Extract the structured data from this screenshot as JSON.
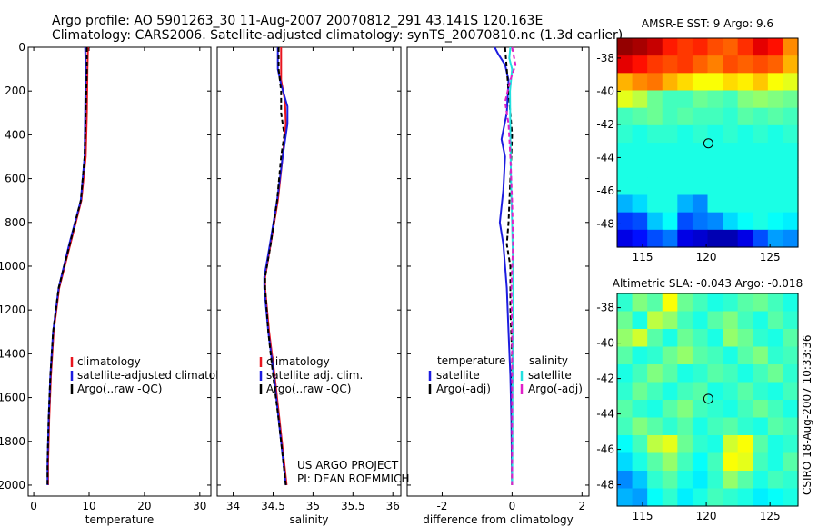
{
  "header": {
    "line1": "Argo profile: AO 5901263_30 11-Aug-2007 20070812_291 43.141S 120.163E",
    "line2": "Climatology: CARS2006. Satellite-adjusted climatology: synTS_20070810.nc (1.3d earlier)"
  },
  "credits": {
    "project": "US ARGO PROJECT",
    "pi": "PI: DEAN ROEMMICH",
    "stamp": "CSIRO 18-Aug-2007 10:33:36"
  },
  "colors": {
    "climatology": "#e8141e",
    "satellite": "#1c1ce0",
    "argo": "#000000",
    "salinity_satellite": "#22e0e0",
    "salinity_argo": "#e020c8"
  },
  "chart_data": [
    {
      "id": "temperature",
      "type": "line",
      "xlabel": "temperature",
      "xlim": [
        -1,
        32
      ],
      "ylim": [
        2050,
        0
      ],
      "xticks": [
        0,
        10,
        20,
        30
      ],
      "xtick_labels": [
        "0",
        "10",
        "20",
        "30"
      ],
      "yticks": [
        0,
        200,
        400,
        600,
        800,
        1000,
        1200,
        1400,
        1600,
        1800,
        2000
      ],
      "ytick_labels": [
        "0",
        "200",
        "400",
        "600",
        "800",
        "1000",
        "1200",
        "1400",
        "1600",
        "1800",
        "2000"
      ],
      "legend": [
        "climatology",
        "satellite-adjusted climatology",
        "Argo(..raw -QC)"
      ],
      "series": [
        {
          "name": "climatology",
          "color": "climatology",
          "dash": "",
          "depth": [
            0,
            100,
            300,
            500,
            700,
            900,
            1100,
            1300,
            1500,
            1700,
            1900,
            2000
          ],
          "values": [
            9.8,
            9.7,
            9.6,
            9.4,
            8.6,
            6.6,
            4.6,
            3.6,
            3.1,
            2.8,
            2.6,
            2.6
          ]
        },
        {
          "name": "satellite",
          "color": "satellite",
          "dash": "",
          "depth": [
            0,
            100,
            300,
            500,
            700,
            900,
            1100,
            1300,
            1500,
            1700,
            1900,
            2000
          ],
          "values": [
            9.3,
            9.4,
            9.3,
            9.2,
            8.5,
            6.4,
            4.5,
            3.5,
            3.0,
            2.7,
            2.5,
            2.5
          ]
        },
        {
          "name": "argo",
          "color": "argo",
          "dash": "5,3",
          "depth": [
            0,
            100,
            300,
            500,
            700,
            900,
            1100,
            1300,
            1500,
            1700,
            1900,
            2000
          ],
          "values": [
            9.6,
            9.6,
            9.4,
            9.2,
            8.5,
            6.5,
            4.5,
            3.5,
            3.0,
            2.7,
            2.5,
            2.5
          ]
        }
      ]
    },
    {
      "id": "salinity",
      "type": "line",
      "xlabel": "salinity",
      "xlim": [
        33.8,
        36.1
      ],
      "ylim": [
        2050,
        0
      ],
      "xticks": [
        34,
        34.5,
        35,
        35.5,
        36
      ],
      "xtick_labels": [
        "34",
        "34.5",
        "35",
        "35.5",
        "36"
      ],
      "legend": [
        "climatology",
        "satellite adj. clim.",
        "Argo(..raw -QC)"
      ],
      "series": [
        {
          "name": "climatology",
          "color": "climatology",
          "dash": "",
          "depth": [
            0,
            100,
            150,
            250,
            350,
            500,
            700,
            900,
            1050,
            1100,
            1300,
            1500,
            1700,
            1900,
            2000
          ],
          "values": [
            34.6,
            34.6,
            34.6,
            34.65,
            34.66,
            34.62,
            34.56,
            34.47,
            34.4,
            34.4,
            34.45,
            34.52,
            34.58,
            34.64,
            34.67
          ]
        },
        {
          "name": "satellite",
          "color": "satellite",
          "dash": "",
          "depth": [
            0,
            100,
            170,
            270,
            350,
            500,
            700,
            900,
            1050,
            1100,
            1300,
            1500,
            1700,
            1900,
            2000
          ],
          "values": [
            34.56,
            34.56,
            34.6,
            34.68,
            34.68,
            34.62,
            34.55,
            34.46,
            34.39,
            34.39,
            34.44,
            34.51,
            34.57,
            34.63,
            34.66
          ]
        },
        {
          "name": "argo",
          "color": "argo",
          "dash": "5,3",
          "depth": [
            0,
            100,
            200,
            300,
            400,
            500,
            700,
            900,
            1050,
            1100,
            1300,
            1500,
            1700,
            1900,
            2000
          ],
          "values": [
            34.57,
            34.57,
            34.6,
            34.6,
            34.64,
            34.6,
            34.55,
            34.47,
            34.4,
            34.4,
            34.44,
            34.5,
            34.57,
            34.63,
            34.66
          ]
        }
      ]
    },
    {
      "id": "difference",
      "type": "line",
      "xlabel": "difference from climatology",
      "xlim": [
        -3,
        2.2
      ],
      "ylim": [
        2050,
        0
      ],
      "xticks": [
        -2,
        0,
        2
      ],
      "xtick_labels": [
        "-2",
        "0",
        "2"
      ],
      "legend_groups": [
        {
          "title": "temperature",
          "items": [
            "satellite",
            "Argo(-adj)"
          ]
        },
        {
          "title": "salinity",
          "items": [
            "satellite",
            "Argo(-adj)"
          ]
        }
      ],
      "series": [
        {
          "name": "temperature satellite",
          "color": "satellite",
          "dash": "",
          "depth": [
            0,
            30,
            80,
            150,
            300,
            420,
            500,
            650,
            800,
            900,
            1100,
            1300,
            1500,
            1700,
            2000
          ],
          "values": [
            -0.5,
            -0.4,
            -0.2,
            -0.1,
            -0.15,
            -0.3,
            -0.2,
            -0.25,
            -0.35,
            -0.25,
            -0.15,
            -0.1,
            -0.05,
            -0.02,
            0
          ]
        },
        {
          "name": "temperature Argo(-adj)",
          "color": "argo",
          "dash": "5,3",
          "depth": [
            0,
            100,
            200,
            400,
            600,
            800,
            900,
            1000,
            1200,
            1400,
            1600,
            1800,
            2000
          ],
          "values": [
            -0.2,
            -0.15,
            -0.1,
            0,
            -0.05,
            -0.1,
            -0.15,
            -0.05,
            -0.05,
            0,
            0,
            0,
            0
          ]
        },
        {
          "name": "salinity satellite",
          "color": "salinity_satellite",
          "dash": "",
          "depth": [
            0,
            50,
            100,
            200,
            400,
            600,
            800,
            1000,
            1200,
            1400,
            1600,
            1800,
            2000
          ],
          "values": [
            -0.05,
            -0.08,
            0,
            -0.06,
            -0.05,
            -0.03,
            0,
            0.03,
            0.04,
            0.02,
            0.01,
            0.01,
            0
          ]
        },
        {
          "name": "salinity Argo(-adj)",
          "color": "salinity_argo",
          "dash": "5,3",
          "depth": [
            0,
            80,
            150,
            250,
            350,
            500,
            700,
            900,
            1100,
            1300,
            1500,
            1700,
            2000
          ],
          "values": [
            0,
            0.1,
            -0.05,
            -0.2,
            -0.1,
            -0.05,
            0,
            0.03,
            -0.02,
            0,
            0,
            0,
            0
          ]
        }
      ]
    },
    {
      "id": "sst_map",
      "type": "heatmap",
      "title": "AMSR-E SST: 9 Argo: 9.6",
      "xlim": [
        113,
        127.2
      ],
      "ylim": [
        -49.4,
        -36.8
      ],
      "xticks": [
        115,
        120,
        125
      ],
      "xtick_labels": [
        "115",
        "120",
        "125"
      ],
      "yticks": [
        -38,
        -40,
        -42,
        -44,
        -46,
        -48
      ],
      "ytick_labels": [
        "-38",
        "-40",
        "-42",
        "-44",
        "-46",
        "-48"
      ],
      "marker": {
        "lon": 120.163,
        "lat": -43.141
      },
      "lat_bands": [
        -37.8,
        -38.8,
        -39.6,
        -40.4,
        -41.2,
        -42.2,
        -43.2,
        -44.4,
        -45.6,
        -46.6,
        -47.6,
        -48.6
      ],
      "grid": [
        [
          0.98,
          0.96,
          0.93,
          0.85,
          0.82,
          0.84,
          0.8,
          0.78,
          0.83,
          0.9,
          0.86,
          0.74
        ],
        [
          0.9,
          0.86,
          0.82,
          0.8,
          0.82,
          0.78,
          0.75,
          0.8,
          0.78,
          0.8,
          0.78,
          0.7
        ],
        [
          0.7,
          0.74,
          0.76,
          0.7,
          0.66,
          0.62,
          0.62,
          0.66,
          0.64,
          0.68,
          0.62,
          0.6
        ],
        [
          0.6,
          0.56,
          0.48,
          0.44,
          0.44,
          0.48,
          0.46,
          0.44,
          0.5,
          0.52,
          0.5,
          0.48
        ],
        [
          0.44,
          0.46,
          0.48,
          0.44,
          0.46,
          0.44,
          0.44,
          0.42,
          0.46,
          0.44,
          0.46,
          0.44
        ],
        [
          0.42,
          0.4,
          0.42,
          0.42,
          0.4,
          0.42,
          0.4,
          0.42,
          0.4,
          0.42,
          0.4,
          0.42
        ],
        [
          0.4,
          0.4,
          0.4,
          0.4,
          0.4,
          0.4,
          0.4,
          0.4,
          0.4,
          0.4,
          0.4,
          0.4
        ],
        [
          0.4,
          0.4,
          0.4,
          0.4,
          0.4,
          0.4,
          0.4,
          0.4,
          0.4,
          0.4,
          0.4,
          0.4
        ],
        [
          0.4,
          0.4,
          0.4,
          0.4,
          0.4,
          0.4,
          0.4,
          0.4,
          0.4,
          0.4,
          0.4,
          0.4
        ],
        [
          0.3,
          0.34,
          0.4,
          0.4,
          0.3,
          0.26,
          0.4,
          0.4,
          0.4,
          0.4,
          0.4,
          0.4
        ],
        [
          0.18,
          0.2,
          0.32,
          0.38,
          0.2,
          0.24,
          0.26,
          0.34,
          0.38,
          0.4,
          0.38,
          0.36
        ],
        [
          0.1,
          0.14,
          0.2,
          0.24,
          0.1,
          0.08,
          0.05,
          0.05,
          0.1,
          0.2,
          0.28,
          0.26
        ]
      ]
    },
    {
      "id": "sla_map",
      "type": "heatmap",
      "title": "Altimetric SLA: -0.043 Argo: -0.018",
      "xlim": [
        113,
        127.2
      ],
      "ylim": [
        -49.2,
        -37.2
      ],
      "xticks": [
        115,
        120,
        125
      ],
      "xtick_labels": [
        "115",
        "120",
        "125"
      ],
      "yticks": [
        -38,
        -40,
        -42,
        -44,
        -46,
        -48
      ],
      "ytick_labels": [
        "-38",
        "-40",
        "-42",
        "-44",
        "-46",
        "-48"
      ],
      "marker": {
        "lon": 120.163,
        "lat": -43.141
      },
      "grid": [
        [
          0.42,
          0.5,
          0.46,
          0.62,
          0.48,
          0.44,
          0.4,
          0.42,
          0.46,
          0.48,
          0.44,
          0.4
        ],
        [
          0.48,
          0.4,
          0.56,
          0.52,
          0.44,
          0.4,
          0.46,
          0.5,
          0.44,
          0.4,
          0.46,
          0.42
        ],
        [
          0.52,
          0.58,
          0.46,
          0.4,
          0.48,
          0.44,
          0.4,
          0.52,
          0.48,
          0.42,
          0.4,
          0.46
        ],
        [
          0.46,
          0.4,
          0.42,
          0.48,
          0.52,
          0.46,
          0.44,
          0.4,
          0.46,
          0.5,
          0.42,
          0.44
        ],
        [
          0.4,
          0.44,
          0.5,
          0.46,
          0.4,
          0.42,
          0.46,
          0.44,
          0.4,
          0.44,
          0.48,
          0.42
        ],
        [
          0.42,
          0.48,
          0.44,
          0.4,
          0.44,
          0.46,
          0.4,
          0.42,
          0.46,
          0.42,
          0.4,
          0.44
        ],
        [
          0.46,
          0.42,
          0.4,
          0.46,
          0.5,
          0.44,
          0.42,
          0.4,
          0.44,
          0.48,
          0.44,
          0.4
        ],
        [
          0.44,
          0.5,
          0.46,
          0.42,
          0.46,
          0.4,
          0.44,
          0.46,
          0.42,
          0.4,
          0.46,
          0.44
        ],
        [
          0.38,
          0.44,
          0.56,
          0.6,
          0.48,
          0.42,
          0.4,
          0.58,
          0.62,
          0.46,
          0.4,
          0.42
        ],
        [
          0.34,
          0.4,
          0.46,
          0.52,
          0.44,
          0.38,
          0.44,
          0.62,
          0.6,
          0.44,
          0.4,
          0.46
        ],
        [
          0.26,
          0.32,
          0.42,
          0.46,
          0.4,
          0.36,
          0.42,
          0.52,
          0.46,
          0.4,
          0.44,
          0.42
        ],
        [
          0.3,
          0.28,
          0.38,
          0.42,
          0.36,
          0.4,
          0.44,
          0.42,
          0.4,
          0.36,
          0.38,
          0.4
        ]
      ]
    }
  ]
}
